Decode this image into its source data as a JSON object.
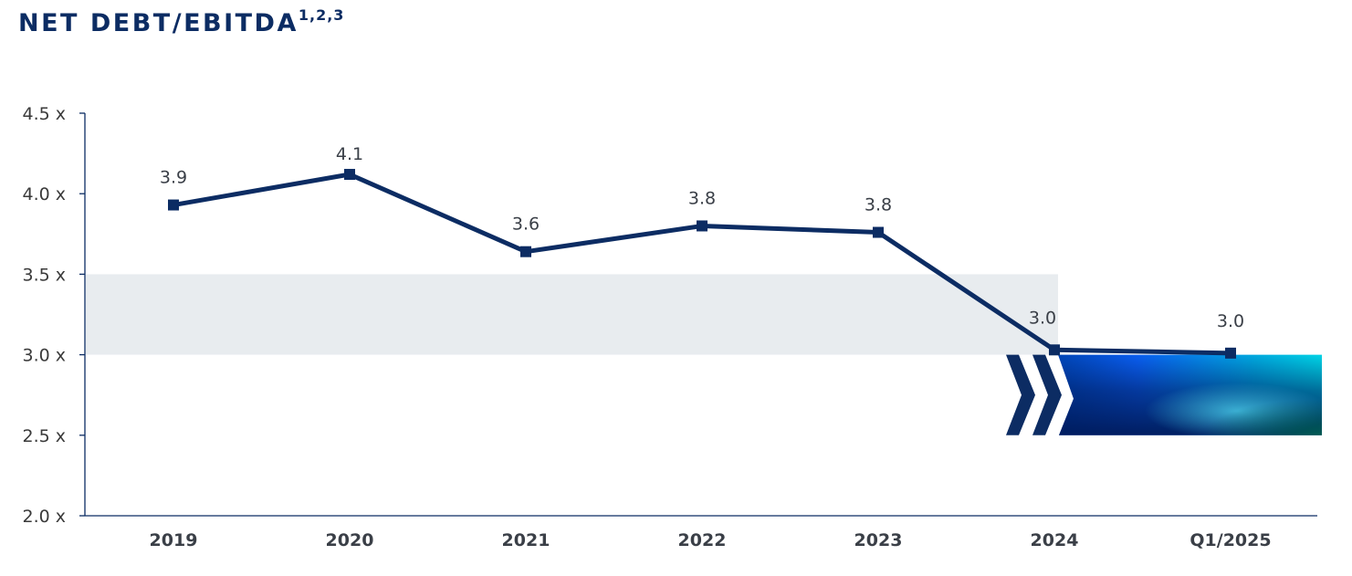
{
  "title": {
    "main": "NET DEBT/EBITDA",
    "superscript": "1,2,3"
  },
  "colors": {
    "line": "#0c2c63",
    "target_band": "#e8ecef",
    "title": "#0c2c63",
    "axis": "#0c2c63"
  },
  "chart_data": {
    "type": "line",
    "categories": [
      "2019",
      "2020",
      "2021",
      "2022",
      "2023",
      "2024",
      "Q1/2025"
    ],
    "series": [
      {
        "values": [
          3.93,
          4.12,
          3.64,
          3.8,
          3.76,
          3.03,
          3.01
        ],
        "labels": [
          "3.9",
          "4.1",
          "3.6",
          "3.8",
          "3.8",
          "3.0",
          "3.0"
        ]
      }
    ],
    "ylim": [
      2.0,
      4.5
    ],
    "yticks": [
      2.0,
      2.5,
      3.0,
      3.5,
      4.0,
      4.5
    ],
    "ytick_labels": [
      "2.0 x",
      "2.5 x",
      "3.0 x",
      "3.5 x",
      "4.0 x",
      "4.5 x"
    ],
    "target_band": [
      3.0,
      3.5
    ],
    "target_box": [
      2.5,
      3.0
    ],
    "grid": false,
    "legend": "none"
  }
}
